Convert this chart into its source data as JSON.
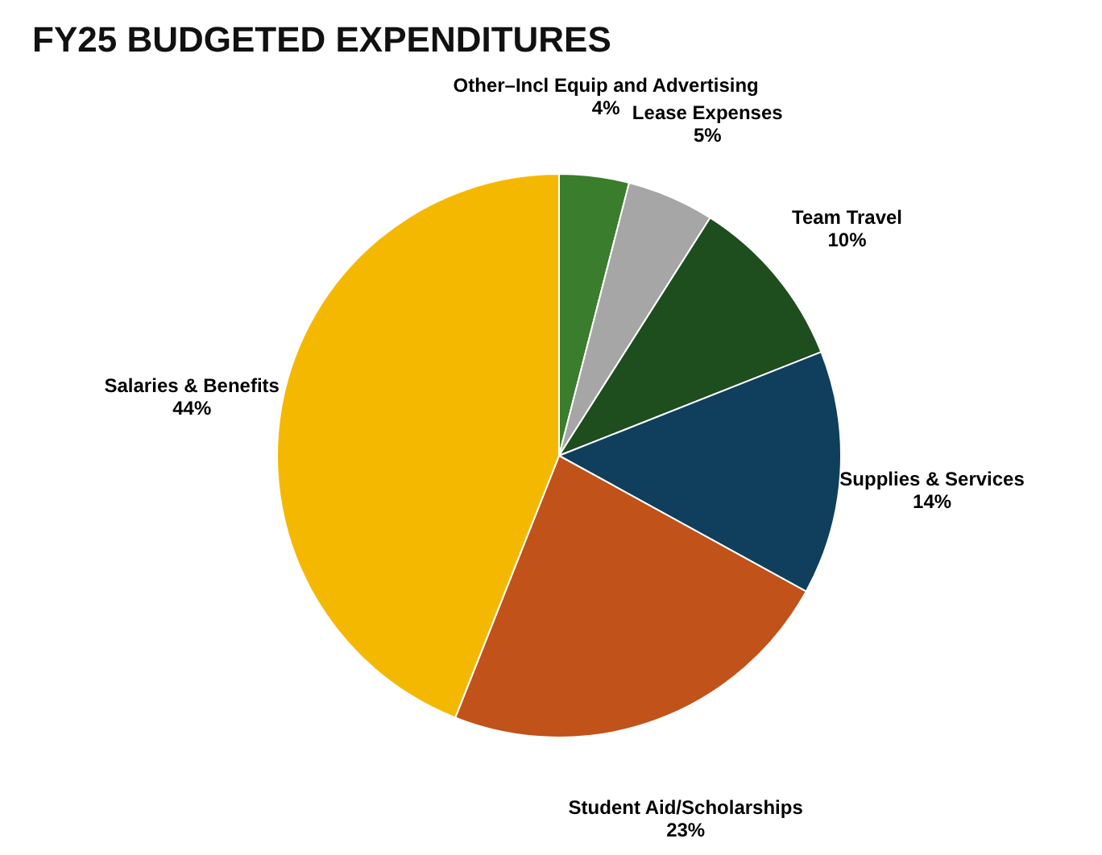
{
  "chart_data": {
    "type": "pie",
    "title": "FY25 BUDGETED EXPENDITURES",
    "categories": [
      "Other–Incl Equip and Advertising",
      "Lease Expenses",
      "Team Travel",
      "Supplies & Services",
      "Student Aid/Scholarships",
      "Salaries & Benefits"
    ],
    "values": [
      4,
      5,
      10,
      14,
      23,
      44
    ],
    "value_labels": [
      "4%",
      "5%",
      "10%",
      "14%",
      "23%",
      "44%"
    ],
    "colors": [
      "#3a7d2c",
      "#a6a6a6",
      "#1e4d1e",
      "#0f3f5c",
      "#c0521a",
      "#f5b800"
    ],
    "legend": false
  }
}
